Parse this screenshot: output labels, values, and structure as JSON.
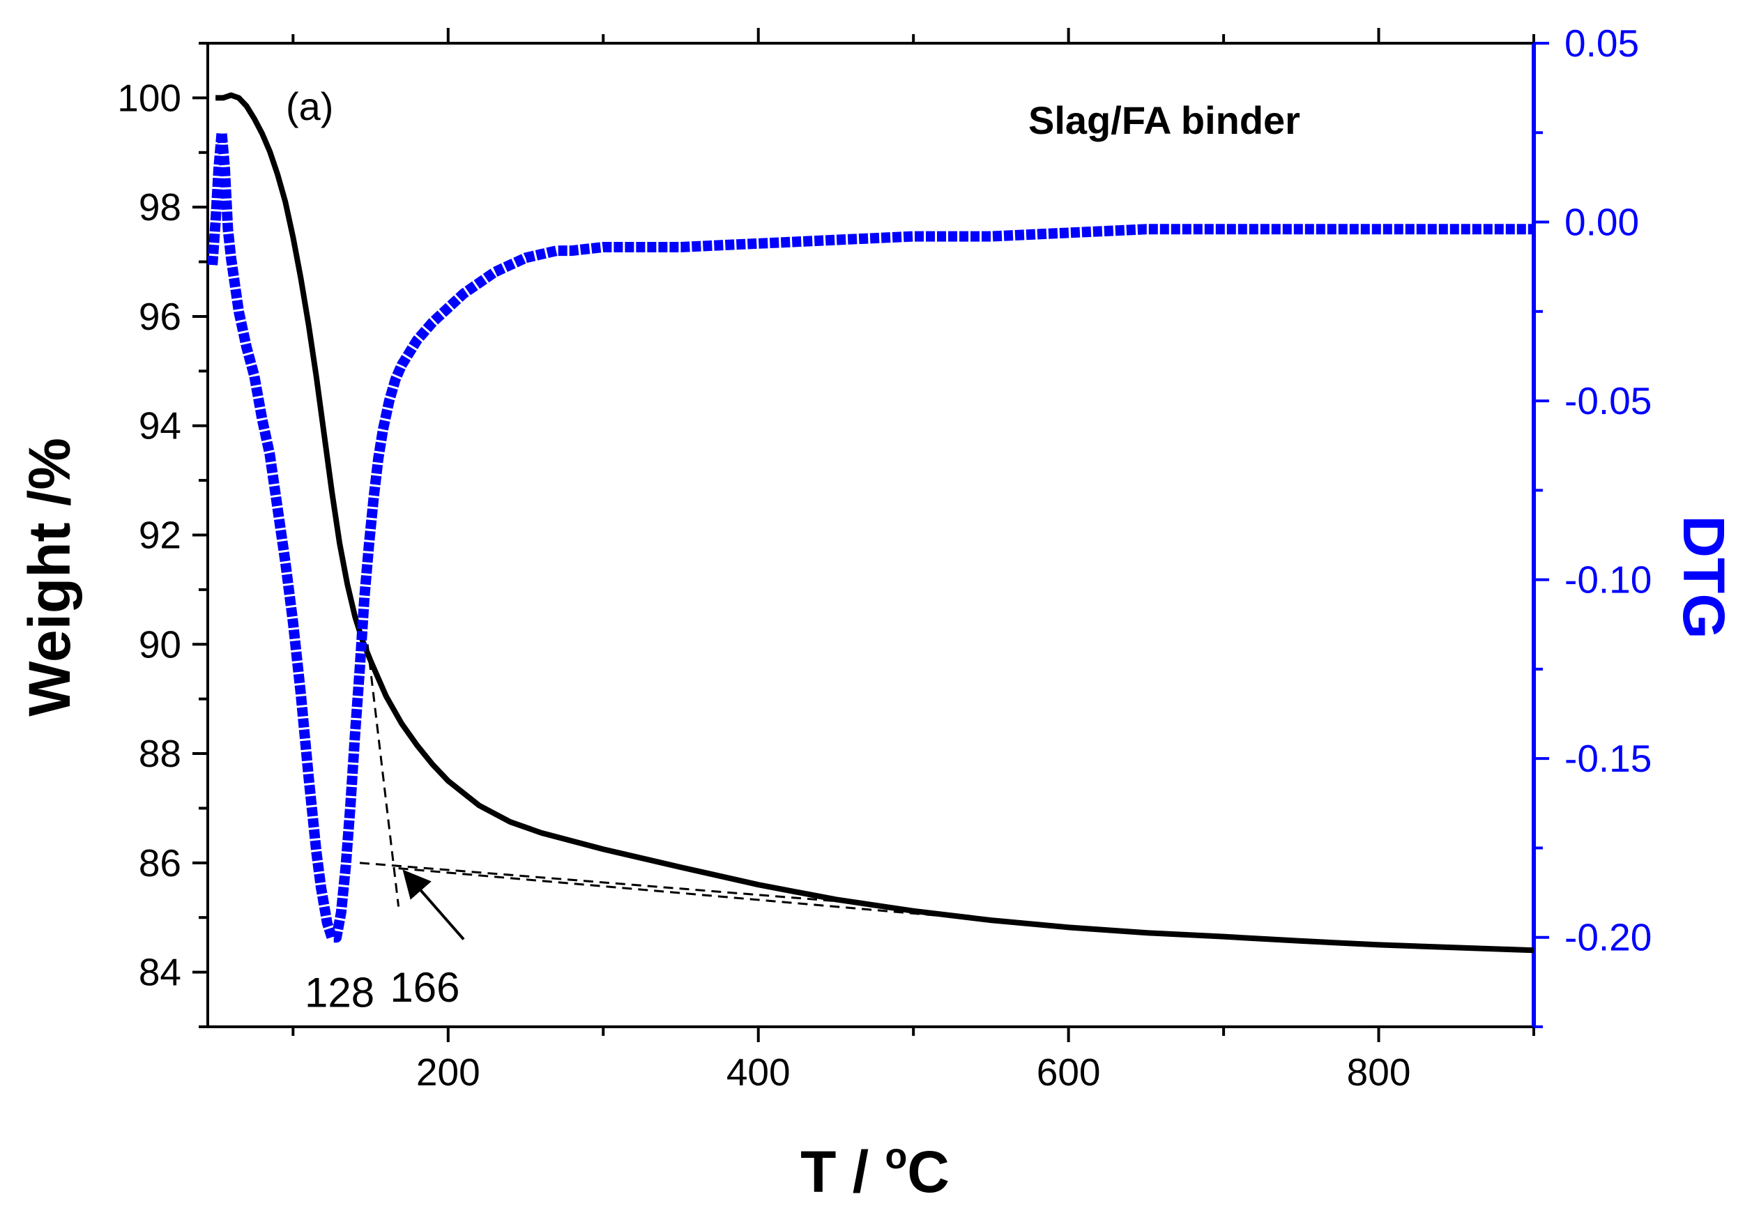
{
  "chart_data": {
    "type": "line",
    "panel_label": "(a)",
    "inset_title": "Slag/FA binder",
    "xlabel": "T / °C",
    "xlabel_main": "T / ",
    "xlabel_sup": "o",
    "xlabel_unit": "C",
    "ylabel_left": "Weight /%",
    "ylabel_right": "DTG",
    "xlim": [
      45,
      900
    ],
    "ylim_left": [
      83,
      101
    ],
    "ylim_right": [
      -0.225,
      0.05
    ],
    "x_ticks": [
      "200",
      "400",
      "600",
      "800"
    ],
    "y_left_ticks": [
      "84",
      "86",
      "88",
      "90",
      "92",
      "94",
      "96",
      "98",
      "100"
    ],
    "y_right_ticks": [
      "-0.20",
      "-0.15",
      "-0.10",
      "-0.05",
      "0.00",
      "0.05"
    ],
    "grid": false,
    "colors": {
      "weight": "#000000",
      "dtg": "#0000ff",
      "axis": "#000000",
      "right_axis": "#0000ff"
    },
    "series": [
      {
        "axis": "left",
        "x": [
          50,
          55,
          60,
          65,
          70,
          75,
          80,
          85,
          90,
          95,
          100,
          105,
          110,
          115,
          120,
          125,
          130,
          135,
          140,
          145,
          150,
          160,
          170,
          180,
          190,
          200,
          220,
          240,
          260,
          280,
          300,
          350,
          400,
          450,
          500,
          550,
          600,
          650,
          700,
          750,
          800,
          850,
          900
        ],
        "values": [
          100.0,
          100.0,
          100.05,
          100.0,
          99.85,
          99.62,
          99.35,
          99.02,
          98.6,
          98.1,
          97.45,
          96.7,
          95.85,
          94.9,
          93.85,
          92.8,
          91.85,
          91.1,
          90.5,
          90.05,
          89.7,
          89.05,
          88.55,
          88.15,
          87.8,
          87.5,
          87.05,
          86.75,
          86.55,
          86.4,
          86.25,
          85.92,
          85.6,
          85.33,
          85.12,
          84.95,
          84.82,
          84.72,
          84.65,
          84.57,
          84.5,
          84.45,
          84.4
        ]
      },
      {
        "axis": "right",
        "x": [
          48,
          50,
          52,
          54,
          56,
          58,
          60,
          65,
          70,
          75,
          80,
          85,
          90,
          95,
          100,
          105,
          110,
          115,
          118,
          122,
          125,
          128,
          131,
          134,
          137,
          140,
          143,
          146,
          149,
          152,
          155,
          158,
          162,
          166,
          170,
          180,
          190,
          200,
          210,
          220,
          230,
          240,
          250,
          260,
          270,
          280,
          300,
          350,
          400,
          450,
          500,
          550,
          600,
          650,
          700,
          750,
          800,
          850,
          900
        ],
        "values": [
          -0.012,
          0.0,
          0.015,
          0.025,
          0.015,
          -0.002,
          -0.01,
          -0.025,
          -0.035,
          -0.043,
          -0.055,
          -0.065,
          -0.08,
          -0.095,
          -0.112,
          -0.132,
          -0.155,
          -0.176,
          -0.186,
          -0.196,
          -0.2,
          -0.2,
          -0.193,
          -0.18,
          -0.163,
          -0.143,
          -0.125,
          -0.105,
          -0.09,
          -0.077,
          -0.066,
          -0.058,
          -0.05,
          -0.044,
          -0.04,
          -0.033,
          -0.028,
          -0.024,
          -0.02,
          -0.017,
          -0.014,
          -0.012,
          -0.01,
          -0.009,
          -0.008,
          -0.008,
          -0.007,
          -0.007,
          -0.006,
          -0.005,
          -0.004,
          -0.004,
          -0.003,
          -0.002,
          -0.002,
          -0.002,
          -0.002,
          -0.002,
          -0.002
        ]
      }
    ],
    "tangent_lines": [
      {
        "x1": 148,
        "y1": 90.0,
        "x2": 168,
        "y2": 85.2
      },
      {
        "x1": 143,
        "y1": 86.0,
        "x2": 450,
        "y2": 85.3
      },
      {
        "x1": 168,
        "y1": 85.9,
        "x2": 550,
        "y2": 84.95
      }
    ],
    "annotations": [
      {
        "text": "128",
        "x": 130,
        "y": 84.0
      },
      {
        "text": "166",
        "x": 185,
        "y": 84.1
      }
    ],
    "arrow": {
      "from_x": 210,
      "from_y": 84.6,
      "to_x": 173,
      "to_y": 85.8
    }
  }
}
